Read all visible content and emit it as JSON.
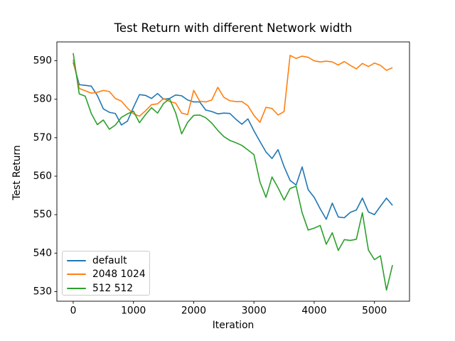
{
  "chart_data": {
    "type": "line",
    "title": "Test Return with different Network width",
    "xlabel": "Iteration",
    "ylabel": "Test Return",
    "xticks": [
      0,
      1000,
      2000,
      3000,
      4000,
      5000
    ],
    "yticks": [
      530,
      540,
      550,
      560,
      570,
      580,
      590
    ],
    "xlim": [
      -271,
      5582
    ],
    "ylim": [
      527.5,
      594.9
    ],
    "grid": false,
    "legend_position": "lower left",
    "line_width": 1.6,
    "x": [
      0,
      100,
      200,
      300,
      400,
      500,
      600,
      700,
      800,
      900,
      1000,
      1100,
      1200,
      1300,
      1400,
      1500,
      1600,
      1700,
      1800,
      1900,
      2000,
      2100,
      2200,
      2300,
      2400,
      2500,
      2600,
      2700,
      2800,
      2900,
      3000,
      3100,
      3200,
      3300,
      3400,
      3500,
      3600,
      3700,
      3800,
      3900,
      4000,
      4100,
      4200,
      4300,
      4400,
      4500,
      4600,
      4700,
      4800,
      4900,
      5000,
      5100,
      5200,
      5300
    ],
    "series": [
      {
        "name": "default",
        "color": "#1f77b4",
        "values": [
          589.6,
          583.8,
          583.6,
          583.4,
          581.0,
          577.5,
          576.6,
          576.3,
          573.3,
          574.3,
          577.9,
          581.2,
          581.0,
          580.2,
          581.5,
          580.0,
          580.2,
          581.1,
          580.9,
          579.8,
          579.3,
          579.3,
          577.2,
          576.8,
          576.2,
          576.4,
          576.3,
          574.8,
          573.5,
          574.9,
          571.8,
          569.0,
          566.3,
          564.6,
          566.9,
          562.5,
          558.9,
          557.7,
          562.4,
          556.5,
          554.5,
          551.5,
          548.8,
          553.0,
          549.4,
          549.2,
          550.6,
          551.2,
          554.3,
          550.7,
          550.0,
          552.2,
          554.3,
          552.4
        ]
      },
      {
        "name": "2048 1024",
        "color": "#ff7f0e",
        "values": [
          590.3,
          582.8,
          582.2,
          581.6,
          581.8,
          582.3,
          582.0,
          580.2,
          579.5,
          577.7,
          576.2,
          575.6,
          577.0,
          578.6,
          578.8,
          580.2,
          579.4,
          579.0,
          576.4,
          576.0,
          582.3,
          579.5,
          579.3,
          579.8,
          583.1,
          580.5,
          579.6,
          579.4,
          579.4,
          578.3,
          575.8,
          574.0,
          577.9,
          577.6,
          575.9,
          576.8,
          591.4,
          590.6,
          591.2,
          590.9,
          590.0,
          589.7,
          589.9,
          589.7,
          588.9,
          589.8,
          588.8,
          587.9,
          589.3,
          588.5,
          589.4,
          588.8,
          587.5,
          588.2
        ]
      },
      {
        "name": "512 512",
        "color": "#2ca02c",
        "values": [
          592.0,
          581.4,
          580.8,
          576.3,
          573.4,
          574.6,
          572.2,
          573.3,
          575.3,
          576.2,
          576.9,
          573.9,
          576.0,
          577.8,
          576.4,
          578.9,
          580.1,
          576.5,
          571.0,
          574.0,
          575.8,
          575.9,
          575.2,
          573.8,
          571.9,
          570.3,
          569.3,
          568.7,
          568.0,
          566.8,
          565.6,
          558.5,
          554.5,
          559.8,
          557.0,
          553.8,
          556.8,
          557.4,
          550.5,
          546.0,
          546.5,
          547.2,
          542.3,
          545.3,
          540.7,
          543.5,
          543.3,
          543.6,
          550.5,
          540.8,
          538.3,
          539.3,
          530.4,
          536.9
        ]
      }
    ]
  }
}
